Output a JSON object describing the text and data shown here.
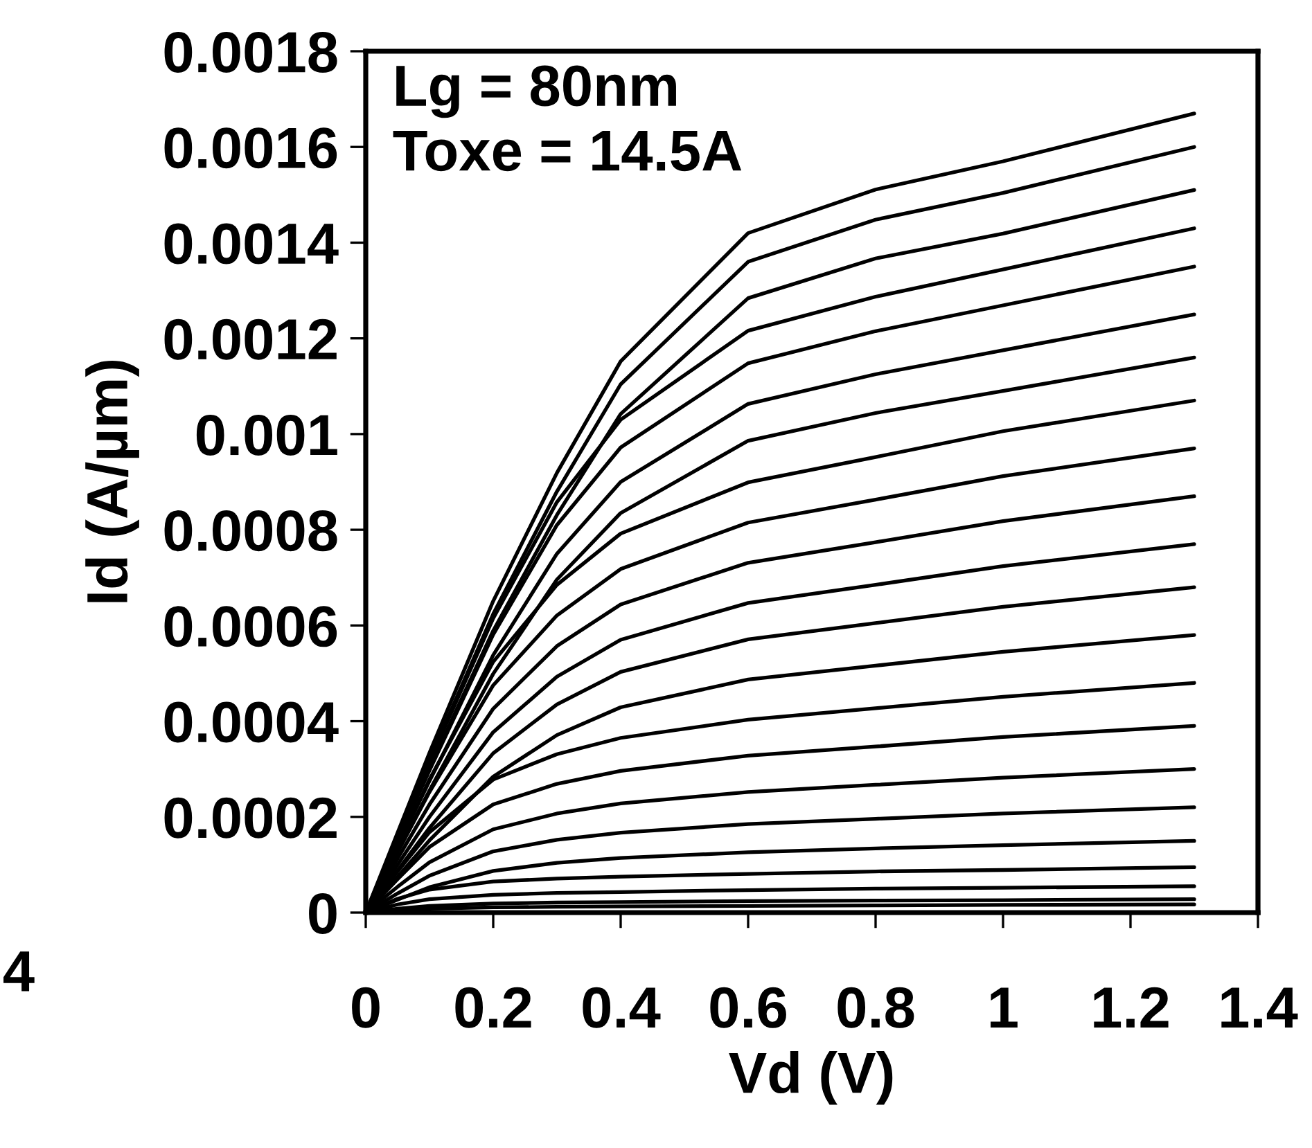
{
  "chart_data": {
    "type": "line",
    "xlabel": "Vd (V)",
    "ylabel": "Id (A/µm)",
    "annotations": [
      "Lg = 80nm",
      "Toxe = 14.5A",
      "4"
    ],
    "x": [
      0,
      0.05,
      0.1,
      0.2,
      0.3,
      0.4,
      0.6,
      0.8,
      1.0,
      1.3
    ],
    "xlim": [
      0,
      1.4
    ],
    "xticks": [
      0,
      0.2,
      0.4,
      0.6,
      0.8,
      1,
      1.2,
      1.4
    ],
    "ylim": [
      0,
      0.0018
    ],
    "yticks": [
      0,
      0.0002,
      0.0004,
      0.0006,
      0.0008,
      0.001,
      0.0012,
      0.0014,
      0.0016,
      0.0018
    ],
    "series": [
      {
        "color": "#000000",
        "values": [
          0,
          0.000167,
          0.000334,
          0.000651,
          0.000919,
          0.001152,
          0.00142,
          0.001511,
          0.00157,
          0.00167
        ]
      },
      {
        "color": "#000000",
        "values": [
          0,
          0.00016,
          0.00032,
          0.000624,
          0.00088,
          0.001104,
          0.00136,
          0.001448,
          0.001504,
          0.0016
        ]
      },
      {
        "color": "#000000",
        "values": [
          0,
          0.000151,
          0.000302,
          0.000589,
          0.000831,
          0.001042,
          0.001284,
          0.001367,
          0.001419,
          0.00151
        ]
      },
      {
        "color": "#000000",
        "values": [
          0,
          0.000157,
          0.000315,
          0.000615,
          0.000858,
          0.00103,
          0.001216,
          0.001287,
          0.001344,
          0.00143
        ]
      },
      {
        "color": "#000000",
        "values": [
          0,
          0.000149,
          0.000297,
          0.000581,
          0.00081,
          0.000972,
          0.001148,
          0.001215,
          0.001269,
          0.00135
        ]
      },
      {
        "color": "#000000",
        "values": [
          0,
          0.000138,
          0.000275,
          0.000538,
          0.00075,
          0.0009,
          0.001063,
          0.001125,
          0.001175,
          0.00125
        ]
      },
      {
        "color": "#000000",
        "values": [
          0,
          0.000128,
          0.000255,
          0.000499,
          0.000696,
          0.000835,
          0.000986,
          0.001044,
          0.00109,
          0.00116
        ]
      },
      {
        "color": "#000000",
        "values": [
          0,
          0.000139,
          0.000278,
          0.000524,
          0.000685,
          0.000792,
          0.000899,
          0.000952,
          0.001006,
          0.00107
        ]
      },
      {
        "color": "#000000",
        "values": [
          0,
          0.000126,
          0.000252,
          0.000475,
          0.000621,
          0.000718,
          0.000815,
          0.000863,
          0.000912,
          0.00097
        ]
      },
      {
        "color": "#000000",
        "values": [
          0,
          0.000113,
          0.000226,
          0.000426,
          0.000557,
          0.000644,
          0.000731,
          0.000774,
          0.000818,
          0.00087
        ]
      },
      {
        "color": "#000000",
        "values": [
          0,
          0.0001,
          0.0002,
          0.000377,
          0.000493,
          0.00057,
          0.000647,
          0.000685,
          0.000724,
          0.00077
        ]
      },
      {
        "color": "#000000",
        "values": [
          0,
          8.8e-05,
          0.000177,
          0.000333,
          0.000435,
          0.000503,
          0.000571,
          0.000605,
          0.000639,
          0.00068
        ]
      },
      {
        "color": "#000000",
        "values": [
          0,
          7.5e-05,
          0.000151,
          0.000284,
          0.000371,
          0.000429,
          0.000487,
          0.000516,
          0.000545,
          0.00058
        ]
      },
      {
        "color": "#000000",
        "values": [
          0,
          8.6e-05,
          0.000168,
          0.000278,
          0.000331,
          0.000365,
          0.000403,
          0.000427,
          0.000451,
          0.00048
        ]
      },
      {
        "color": "#000000",
        "values": [
          0,
          7e-05,
          0.000137,
          0.000226,
          0.000269,
          0.000296,
          0.000328,
          0.000347,
          0.000367,
          0.00039
        ]
      },
      {
        "color": "#000000",
        "values": [
          0,
          5.4e-05,
          0.000105,
          0.000174,
          0.000207,
          0.000228,
          0.000252,
          0.000267,
          0.000282,
          0.0003
        ]
      },
      {
        "color": "#000000",
        "values": [
          0,
          4e-05,
          7.7e-05,
          0.000128,
          0.000152,
          0.000167,
          0.000185,
          0.000196,
          0.000207,
          0.00022
        ]
      },
      {
        "color": "#000000",
        "values": [
          0,
          2.7e-05,
          5.3e-05,
          8.7e-05,
          0.000104,
          0.000114,
          0.000126,
          0.000134,
          0.000141,
          0.00015
        ]
      },
      {
        "color": "#000000",
        "values": [
          0,
          2.9e-05,
          4.8e-05,
          6.5e-05,
          7.1e-05,
          7.5e-05,
          8.1e-05,
          8.6e-05,
          8.9e-05,
          9.5e-05
        ]
      },
      {
        "color": "#000000",
        "values": [
          0,
          1.7e-05,
          2.8e-05,
          3.7e-05,
          4.1e-05,
          4.3e-05,
          4.7e-05,
          5e-05,
          5.2e-05,
          5.5e-05
        ]
      },
      {
        "color": "#000000",
        "values": [
          0,
          8e-06,
          1.4e-05,
          1.9e-05,
          2.1e-05,
          2.2e-05,
          2.4e-05,
          2.5e-05,
          2.6e-05,
          2.8e-05
        ]
      },
      {
        "color": "#000000",
        "values": [
          0,
          5e-06,
          8e-06,
          1.1e-05,
          1.2e-05,
          1.3e-05,
          1.4e-05,
          1.5e-05,
          1.6e-05,
          1.7e-05
        ]
      }
    ]
  }
}
